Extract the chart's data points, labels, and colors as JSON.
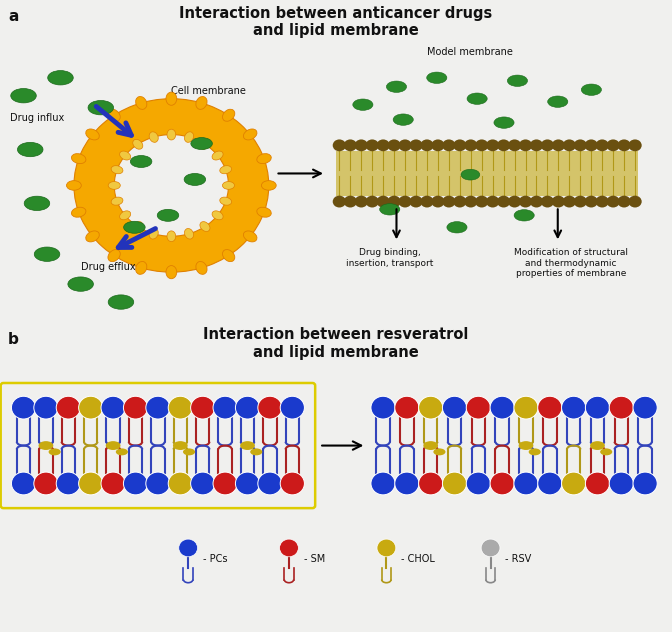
{
  "title_a": "Interaction between anticancer drugs\nand lipid membrane",
  "title_b": "Interaction between resveratrol\nand lipid membrane",
  "label_a": "a",
  "label_b": "b",
  "bg_color": "#f0f0ee",
  "cell_color": "#f5a800",
  "cell_inner_color": "#fde88a",
  "cell_outline": "#e08000",
  "drug_color": "#2a8a2a",
  "arrow_blue": "#2233bb",
  "mem_tail_color": "#c8b84a",
  "mem_head_color": "#7a6010",
  "text_color": "#111111",
  "ann_fs": 7.0,
  "title_fs": 10.5,
  "label_fs": 11,
  "pc_color": "#1a3acc",
  "sm_color": "#cc1a1a",
  "chol_color": "#c8aa10",
  "rsv_color": "#aaaaaa",
  "pc_tail": "#3344bb",
  "sm_tail": "#aa2222",
  "chol_tail": "#b09818",
  "rsv_tail": "#888888",
  "white": "#ffffff"
}
